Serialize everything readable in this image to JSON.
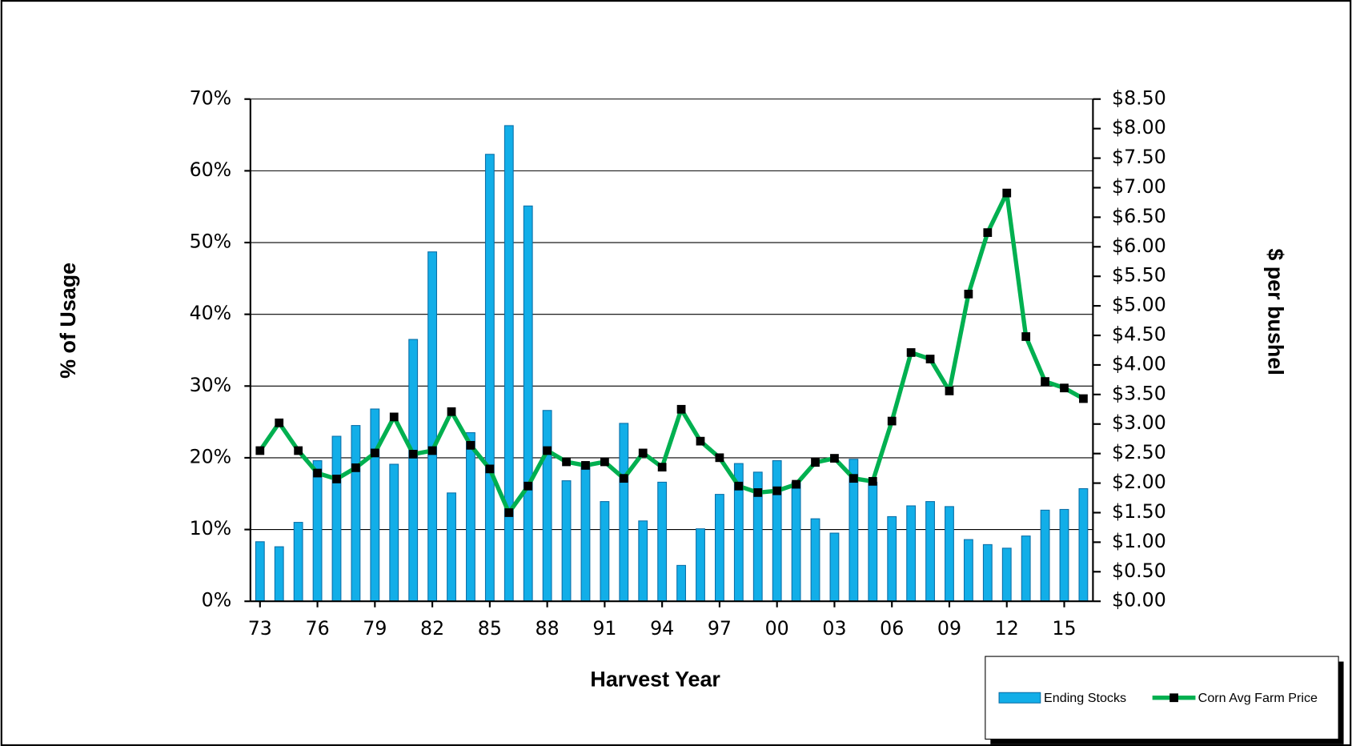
{
  "chart_data": {
    "type": "bar_line",
    "x_label": "Harvest Year",
    "y_label": "% of Usage",
    "y2_label": "$ per bushel",
    "categories": [
      "73",
      null,
      null,
      "76",
      null,
      null,
      "79",
      null,
      null,
      "82",
      null,
      null,
      "85",
      null,
      null,
      "88",
      null,
      null,
      "91",
      null,
      null,
      "94",
      null,
      null,
      "97",
      null,
      null,
      "00",
      null,
      null,
      "03",
      null,
      null,
      "06",
      null,
      null,
      "09",
      null,
      null,
      "12",
      null,
      null,
      "15",
      null
    ],
    "series": [
      {
        "name": "Ending Stocks",
        "type": "bar",
        "color": "#12aee8",
        "values": [
          8.3,
          7.6,
          11.0,
          19.6,
          23.0,
          24.5,
          26.8,
          19.1,
          36.5,
          48.7,
          15.1,
          23.5,
          62.3,
          66.3,
          55.1,
          26.6,
          16.8,
          19.3,
          13.9,
          24.8,
          11.2,
          16.6,
          5.0,
          10.1,
          14.9,
          19.2,
          18.0,
          19.6,
          16.6,
          11.5,
          9.5,
          19.8,
          16.6,
          11.8,
          13.3,
          13.9,
          13.2,
          8.6,
          7.9,
          7.4,
          9.1,
          12.7,
          12.8,
          15.7
        ]
      },
      {
        "name": "Corn Avg Farm Price",
        "type": "line",
        "axis": "y2",
        "color": "#00b050",
        "values": [
          2.55,
          3.02,
          2.55,
          2.17,
          2.07,
          2.26,
          2.51,
          3.12,
          2.49,
          2.55,
          3.21,
          2.64,
          2.24,
          1.5,
          1.95,
          2.55,
          2.36,
          2.3,
          2.36,
          2.08,
          2.51,
          2.27,
          3.25,
          2.71,
          2.43,
          1.95,
          1.84,
          1.87,
          1.98,
          2.35,
          2.42,
          2.08,
          2.03,
          3.05,
          4.21,
          4.1,
          3.56,
          5.2,
          6.24,
          6.91,
          4.48,
          3.72,
          3.61,
          3.43
        ]
      }
    ],
    "ylim": [
      0,
      70
    ],
    "yticks": [
      {
        "value": 0,
        "label": "0%"
      },
      {
        "value": 10,
        "label": "10%"
      },
      {
        "value": 20,
        "label": "20%"
      },
      {
        "value": 30,
        "label": "30%"
      },
      {
        "value": 40,
        "label": "40%"
      },
      {
        "value": 50,
        "label": "50%"
      },
      {
        "value": 60,
        "label": "60%"
      },
      {
        "value": 70,
        "label": "70%"
      }
    ],
    "y2lim": [
      0,
      8.5
    ],
    "y2ticks": [
      {
        "value": 0,
        "label": "$0.00"
      },
      {
        "value": 0.5,
        "label": "$0.50"
      },
      {
        "value": 1,
        "label": "$1.00"
      },
      {
        "value": 1.5,
        "label": "$1.50"
      },
      {
        "value": 2,
        "label": "$2.00"
      },
      {
        "value": 2.5,
        "label": "$2.50"
      },
      {
        "value": 3,
        "label": "$3.00"
      },
      {
        "value": 3.5,
        "label": "$3.50"
      },
      {
        "value": 4,
        "label": "$4.00"
      },
      {
        "value": 4.5,
        "label": "$4.50"
      },
      {
        "value": 5,
        "label": "$5.00"
      },
      {
        "value": 5.5,
        "label": "$5.50"
      },
      {
        "value": 6,
        "label": "$6.00"
      },
      {
        "value": 6.5,
        "label": "$6.50"
      },
      {
        "value": 7,
        "label": "$7.00"
      },
      {
        "value": 7.5,
        "label": "$7.50"
      },
      {
        "value": 8,
        "label": "$8.00"
      },
      {
        "value": 8.5,
        "label": "$8.50"
      }
    ],
    "grid": true
  }
}
